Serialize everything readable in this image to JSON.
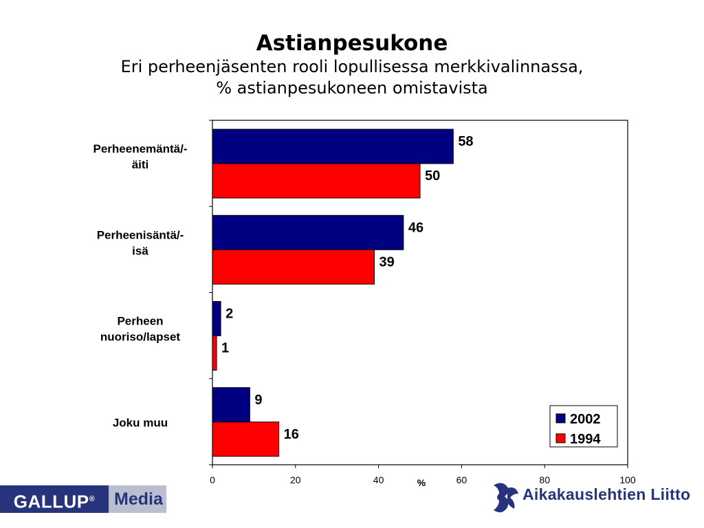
{
  "title": "Astianpesukone",
  "subtitle_line1": "Eri perheenjäsenten rooli lopullisessa merkkivalinnassa,",
  "subtitle_line2": "% astianpesukoneen omistavista",
  "chart_data": {
    "type": "bar",
    "orientation": "horizontal",
    "categories": [
      [
        "Perheenemäntä/-",
        "äiti"
      ],
      [
        "Perheenisäntä/-",
        "isä"
      ],
      [
        "Perheen",
        "nuoriso/lapset"
      ],
      [
        "Joku muu"
      ]
    ],
    "series": [
      {
        "name": "2002",
        "color": "#000080",
        "values": [
          58,
          46,
          2,
          9
        ]
      },
      {
        "name": "1994",
        "color": "#ff0000",
        "values": [
          50,
          39,
          1,
          16
        ]
      }
    ],
    "xlabel": "%",
    "xlim": [
      0,
      100
    ],
    "xticks": [
      0,
      20,
      40,
      60,
      80,
      100
    ],
    "legend_position": "bottom-right",
    "grid": false
  },
  "logos": {
    "gallup_left": "GALLUP",
    "gallup_mark": "®",
    "gallup_right": "Media",
    "aikakauslehtien": "Aikakauslehtien Liitto"
  }
}
